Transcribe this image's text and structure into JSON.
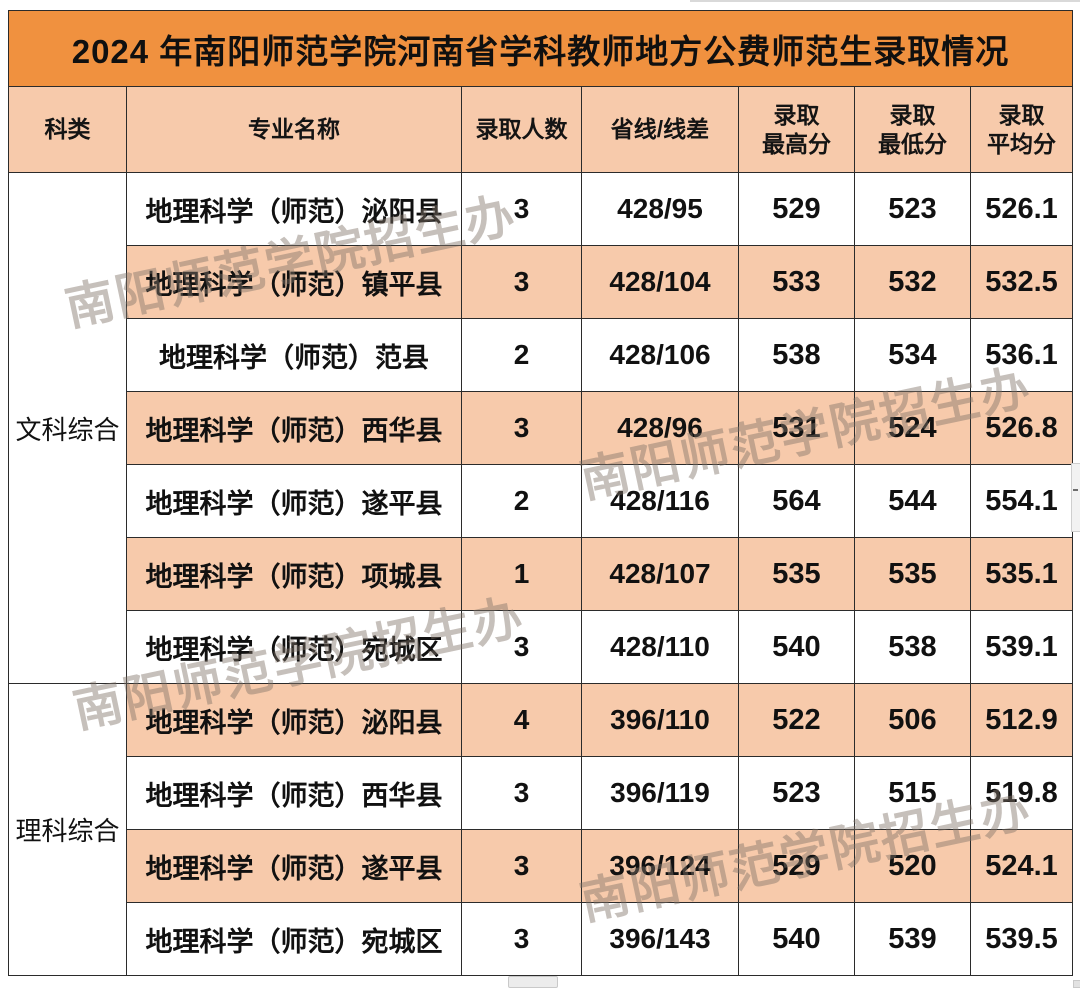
{
  "title": "2024 年南阳师范学院河南省学科教师地方公费师范生录取情况",
  "watermark": {
    "text": "南阳师范学院招生办"
  },
  "colors": {
    "title_bg": "#F0913F",
    "header_bg": "#F7CAAB",
    "row_alt_bg": "#F7CAAB",
    "border": "#2b2b2b",
    "watermark": "rgba(128,115,104,0.45)"
  },
  "columns": [
    {
      "label": "科类"
    },
    {
      "label": "专业名称"
    },
    {
      "label": "录取人数"
    },
    {
      "label": "省线/线差"
    },
    {
      "label": "录取",
      "label2": "最高分"
    },
    {
      "label": "录取",
      "label2": "最低分"
    },
    {
      "label": "录取",
      "label2": "平均分"
    }
  ],
  "sections": [
    {
      "category": "文科综合",
      "rows": [
        {
          "major": "地理科学（师范）泌阳县",
          "count": "3",
          "line_diff": "428/95",
          "max": "529",
          "min": "523",
          "avg": "526.1",
          "shaded": false
        },
        {
          "major": "地理科学（师范）镇平县",
          "count": "3",
          "line_diff": "428/104",
          "max": "533",
          "min": "532",
          "avg": "532.5",
          "shaded": true
        },
        {
          "major": "地理科学（师范）范县",
          "count": "2",
          "line_diff": "428/106",
          "max": "538",
          "min": "534",
          "avg": "536.1",
          "shaded": false
        },
        {
          "major": "地理科学（师范）西华县",
          "count": "3",
          "line_diff": "428/96",
          "max": "531",
          "min": "524",
          "avg": "526.8",
          "shaded": true
        },
        {
          "major": "地理科学（师范）遂平县",
          "count": "2",
          "line_diff": "428/116",
          "max": "564",
          "min": "544",
          "avg": "554.1",
          "shaded": false
        },
        {
          "major": "地理科学（师范）项城县",
          "count": "1",
          "line_diff": "428/107",
          "max": "535",
          "min": "535",
          "avg": "535.1",
          "shaded": true
        },
        {
          "major": "地理科学（师范）宛城区",
          "count": "3",
          "line_diff": "428/110",
          "max": "540",
          "min": "538",
          "avg": "539.1",
          "shaded": false
        }
      ]
    },
    {
      "category": "理科综合",
      "rows": [
        {
          "major": "地理科学（师范）泌阳县",
          "count": "4",
          "line_diff": "396/110",
          "max": "522",
          "min": "506",
          "avg": "512.9",
          "shaded": true
        },
        {
          "major": "地理科学（师范）西华县",
          "count": "3",
          "line_diff": "396/119",
          "max": "523",
          "min": "515",
          "avg": "519.8",
          "shaded": false
        },
        {
          "major": "地理科学（师范）遂平县",
          "count": "3",
          "line_diff": "396/124",
          "max": "529",
          "min": "520",
          "avg": "524.1",
          "shaded": true
        },
        {
          "major": "地理科学（师范）宛城区",
          "count": "3",
          "line_diff": "396/143",
          "max": "540",
          "min": "539",
          "avg": "539.5",
          "shaded": false
        }
      ]
    }
  ]
}
